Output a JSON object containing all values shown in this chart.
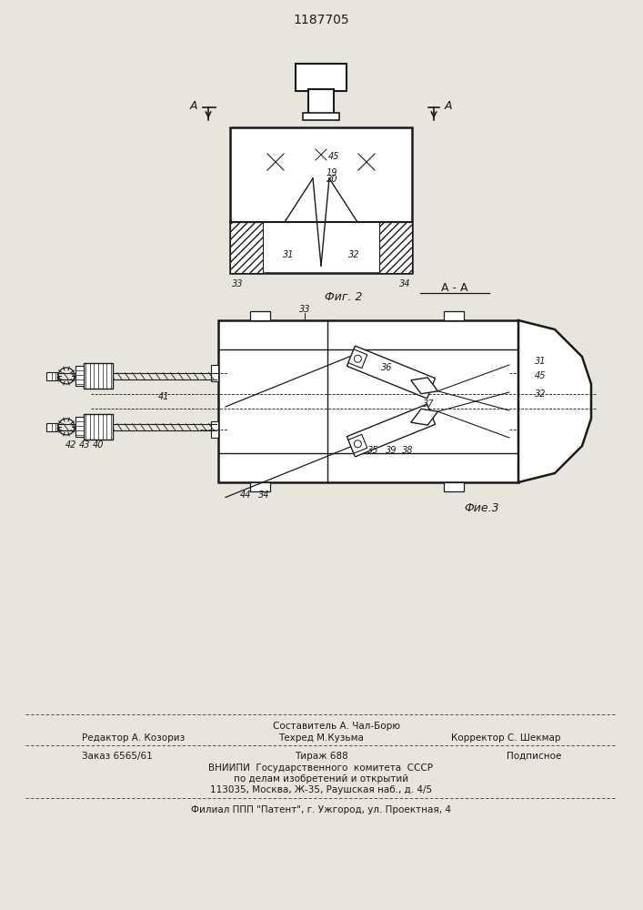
{
  "bg_color": "#e8e4de",
  "line_color": "#1a1a1a",
  "patent_number": "1187705",
  "fig2_caption": "Фиг. 2",
  "fig3_caption": "Фие.3",
  "section_label": "A - A",
  "footer_line0_center": "Составитель А. Чал-Борю",
  "footer_line1_left": "Редактор А. Козориз",
  "footer_line1_center": "Техред М.Кузьма",
  "footer_line1_right": "Корректор С. Шекмар",
  "footer_line2_left": "Заказ 6565/61",
  "footer_line2_center": "Тираж 688",
  "footer_line2_right": "Подписное",
  "footer_line3": "ВНИИПИ  Государственного  комитета  СССР",
  "footer_line4": "по делам изобретений и открытий",
  "footer_line5": "113035, Москва, Ж-35, Раушская наб., д. 4/5",
  "footer_line6": "Филиал ППП \"Патент\", г. Ужгород, ул. Проектная, 4"
}
